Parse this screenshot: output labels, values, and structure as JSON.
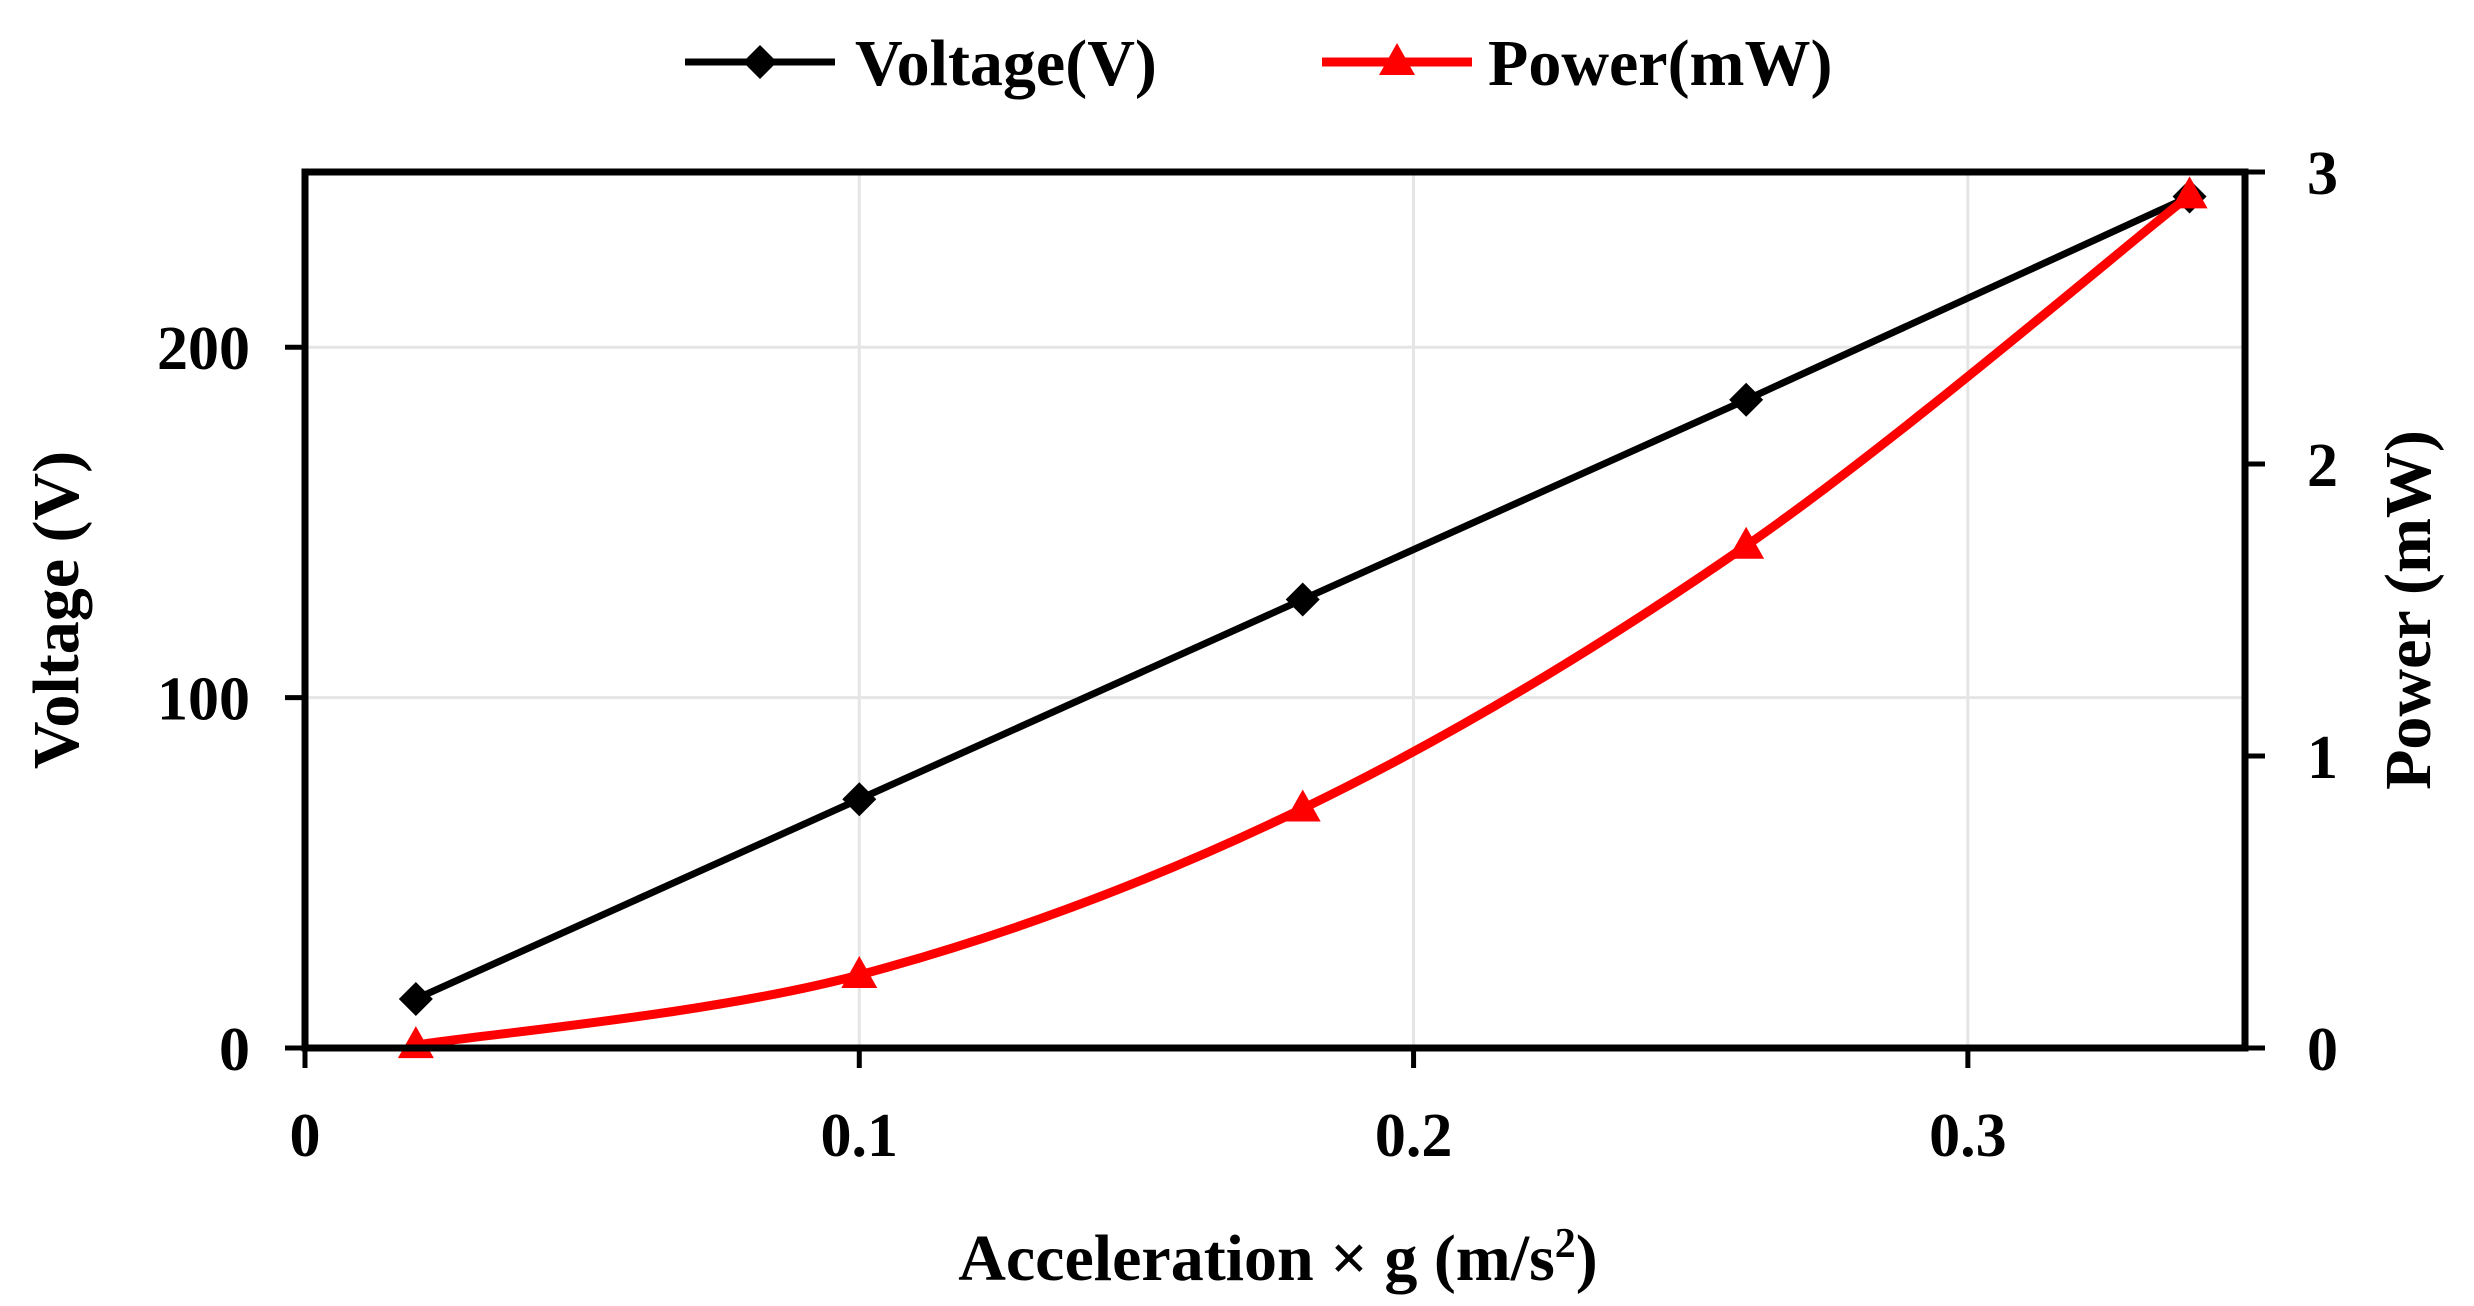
{
  "chart_data": {
    "type": "line",
    "title": "",
    "xlabel": "Acceleration × g (m/s",
    "xlabel_superscript": "2",
    "xlabel_suffix": ")",
    "ylabel_left": "Voltage (V)",
    "ylabel_right": "Power (mW)",
    "x_ticks": [
      "0",
      "0.1",
      "0.2",
      "0.3"
    ],
    "x_tick_values": [
      0,
      0.1,
      0.2,
      0.3
    ],
    "y_left_ticks": [
      "0",
      "100",
      "200"
    ],
    "y_left_tick_values": [
      0,
      100,
      200
    ],
    "y_right_ticks": [
      "0",
      "1",
      "2",
      "3"
    ],
    "y_right_tick_values": [
      0,
      1,
      2,
      3
    ],
    "xlim": [
      0,
      0.35
    ],
    "ylim_left": [
      0,
      250
    ],
    "ylim_right": [
      0,
      3
    ],
    "grid": true,
    "legend_position": "top-center",
    "series": [
      {
        "name": "Voltage(V)",
        "axis": "left",
        "color": "#000000",
        "marker": "diamond",
        "smooth": false,
        "x": [
          0.02,
          0.1,
          0.18,
          0.26,
          0.34
        ],
        "values": [
          14,
          71,
          128,
          185,
          243
        ]
      },
      {
        "name": "Power(mW)",
        "axis": "right",
        "color": "#ff0000",
        "marker": "triangle",
        "smooth": true,
        "x": [
          0.02,
          0.1,
          0.18,
          0.26,
          0.34
        ],
        "values": [
          0.01,
          0.25,
          0.82,
          1.72,
          2.92
        ]
      }
    ]
  }
}
